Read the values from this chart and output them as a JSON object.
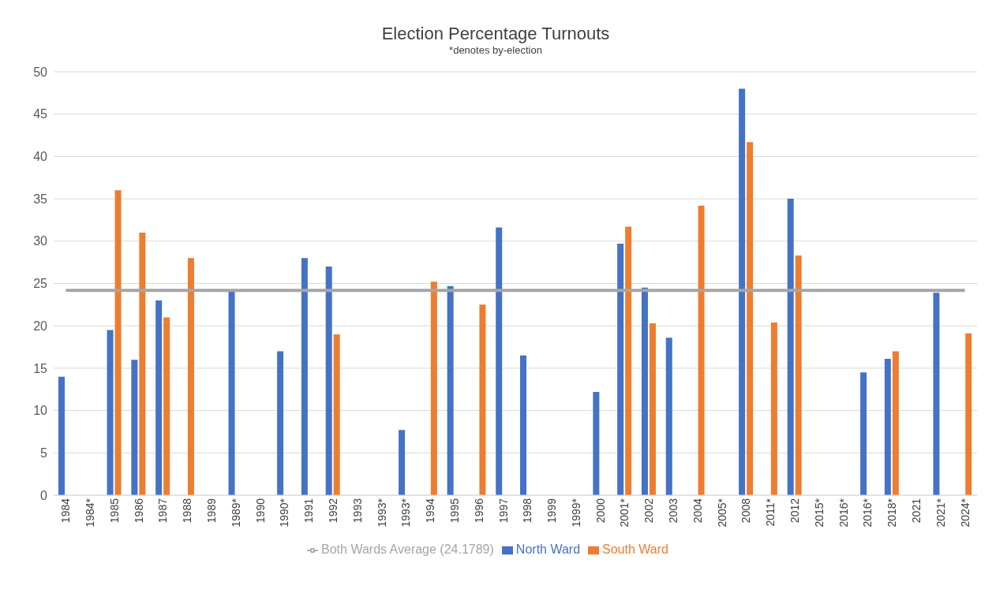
{
  "chart_data": {
    "type": "bar",
    "title": "Election Percentage Turnouts",
    "subtitle": "*denotes by-election",
    "categories": [
      "1984",
      "1984*",
      "1985",
      "1986",
      "1987",
      "1988",
      "1989",
      "1989*",
      "1990",
      "1990*",
      "1991",
      "1992",
      "1993",
      "1993*",
      "1993*",
      "1994",
      "1995",
      "1996",
      "1997",
      "1998",
      "1999",
      "1999*",
      "2000",
      "2001*",
      "2002",
      "2003",
      "2004",
      "2005*",
      "2008",
      "2011*",
      "2012",
      "2015*",
      "2016*",
      "2016*",
      "2018*",
      "2021",
      "2021*",
      "2024*"
    ],
    "series": [
      {
        "name": "North Ward",
        "color": "#4472c4",
        "values": [
          14,
          null,
          19.5,
          16,
          23,
          null,
          null,
          24.3,
          null,
          17,
          28,
          27,
          null,
          null,
          7.7,
          null,
          24.7,
          null,
          31.6,
          16.5,
          null,
          null,
          12.2,
          29.7,
          24.5,
          18.6,
          null,
          null,
          48,
          null,
          35,
          null,
          null,
          14.5,
          16.1,
          null,
          23.9,
          null
        ]
      },
      {
        "name": "South Ward",
        "color": "#ed7d31",
        "values": [
          null,
          null,
          36,
          31,
          21,
          28,
          null,
          null,
          null,
          null,
          null,
          19,
          null,
          null,
          null,
          25.2,
          null,
          22.5,
          null,
          null,
          null,
          null,
          null,
          31.7,
          20.3,
          null,
          34.2,
          null,
          41.7,
          20.4,
          28.3,
          null,
          null,
          null,
          17,
          null,
          null,
          19.1
        ]
      },
      {
        "name": "Both Wards Average (24.1789)",
        "type": "line",
        "color": "#a5a5a5",
        "values": [
          24.1789,
          24.1789,
          24.1789,
          24.1789,
          24.1789,
          24.1789,
          24.1789,
          24.1789,
          24.1789,
          24.1789,
          24.1789,
          24.1789,
          24.1789,
          24.1789,
          24.1789,
          24.1789,
          24.1789,
          24.1789,
          24.1789,
          24.1789,
          24.1789,
          24.1789,
          24.1789,
          24.1789,
          24.1789,
          24.1789,
          24.1789,
          24.1789,
          24.1789,
          24.1789,
          24.1789,
          24.1789,
          24.1789,
          24.1789,
          24.1789,
          24.1789,
          24.1789,
          24.1789
        ]
      }
    ],
    "ylim": [
      0,
      50
    ],
    "yticks": [
      0,
      5,
      10,
      15,
      20,
      25,
      30,
      35,
      40,
      45,
      50
    ],
    "grid": "y",
    "legend": "bottom",
    "marker": "none"
  }
}
